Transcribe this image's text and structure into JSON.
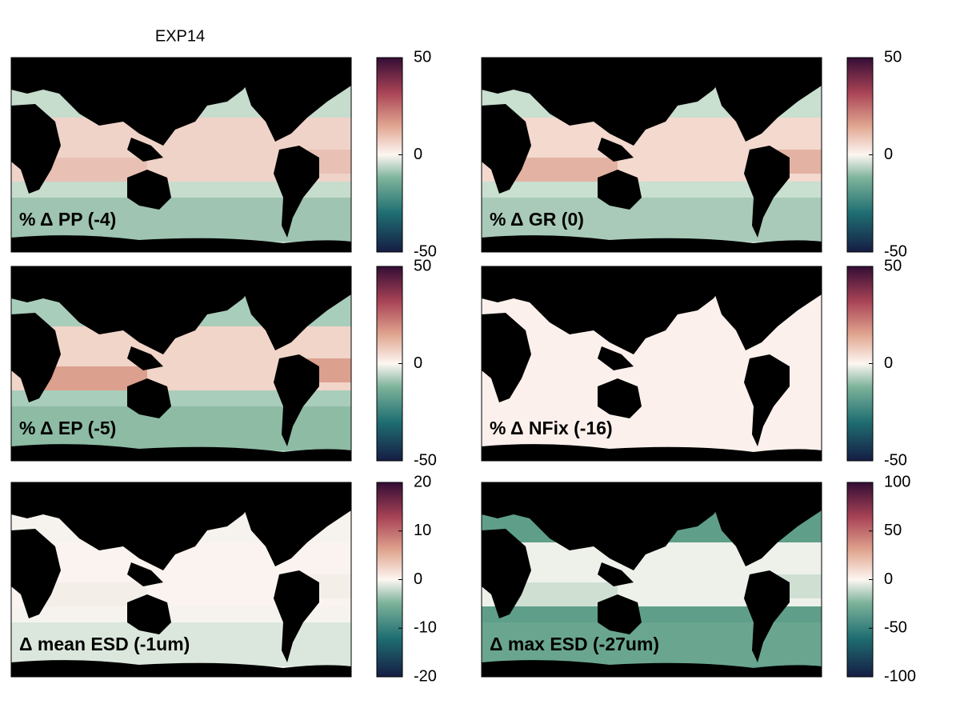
{
  "title": "EXP14",
  "panels": [
    {
      "label": "% Δ PP (-4)",
      "colorbar": {
        "lim": [
          -50,
          50
        ],
        "ticks": [
          -50,
          0,
          50
        ]
      }
    },
    {
      "label": "% Δ GR (0)",
      "colorbar": {
        "lim": [
          -50,
          50
        ],
        "ticks": [
          -50,
          0,
          50
        ]
      }
    },
    {
      "label": "% Δ EP (-5)",
      "colorbar": {
        "lim": [
          -50,
          50
        ],
        "ticks": [
          -50,
          0,
          50
        ]
      }
    },
    {
      "label": "% Δ NFix (-16)",
      "colorbar": {
        "lim": [
          -50,
          50
        ],
        "ticks": [
          -50,
          0,
          50
        ]
      }
    },
    {
      "label": "Δ mean ESD (-1um)",
      "colorbar": {
        "lim": [
          -20,
          20
        ],
        "ticks": [
          -20,
          -10,
          0,
          10,
          20
        ]
      }
    },
    {
      "label": "Δ max ESD (-27um)",
      "colorbar": {
        "lim": [
          -100,
          100
        ],
        "ticks": [
          -100,
          -50,
          0,
          50,
          100
        ]
      }
    }
  ]
}
